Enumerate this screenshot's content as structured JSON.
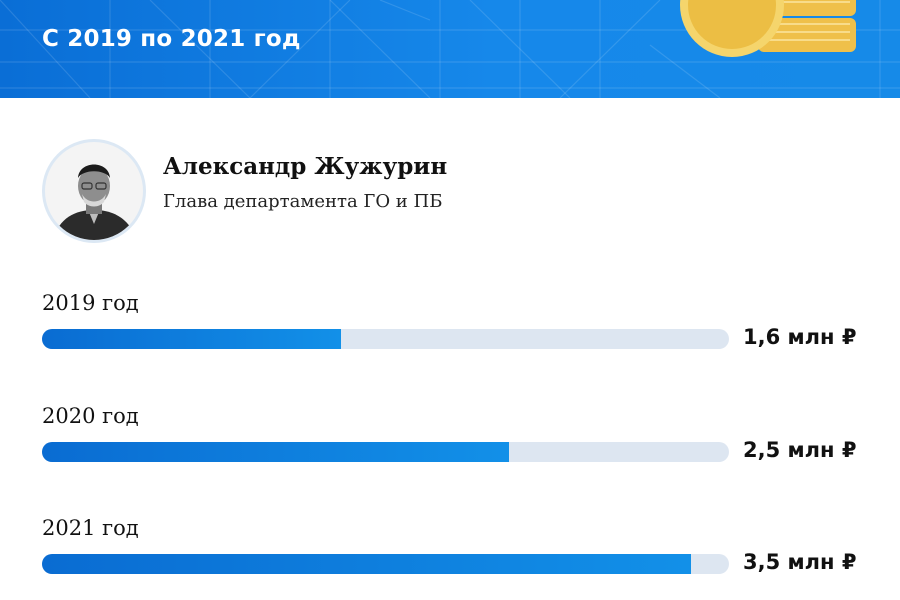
{
  "header": {
    "subtitle": "С 2019 по 2021 год",
    "background_color": "#0f7de0",
    "decoration": "coin-stack-icon"
  },
  "person": {
    "name": "Александр Жужурин",
    "role": "Глава департамента ГО и ПБ",
    "avatar": "portrait-photo"
  },
  "bars": [
    {
      "label": "2019 год",
      "value_label": "1,6 млн ₽",
      "fill_fraction": 0.435
    },
    {
      "label": "2020 год",
      "value_label": "2,5 млн ₽",
      "fill_fraction": 0.68
    },
    {
      "label": "2021 год",
      "value_label": "3,5 млн ₽",
      "fill_fraction": 0.945
    }
  ],
  "colors": {
    "bar_fill_start": "#0a6cd2",
    "bar_fill_end": "#1290e8",
    "bar_track": "#dde6f1"
  }
}
